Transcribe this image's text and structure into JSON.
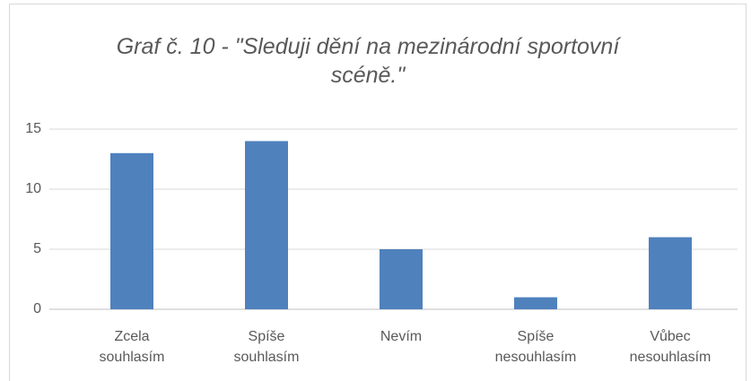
{
  "chart_data": {
    "type": "bar",
    "title": "Graf č. 10 - \"Sleduji dění na mezinárodní sportovní scéně.\"",
    "categories": [
      "Zcela souhlasím",
      "Spíše souhlasím",
      "Nevím",
      "Spíše nesouhlasím",
      "Vůbec nesouhlasím"
    ],
    "values": [
      13,
      14,
      5,
      1,
      6
    ],
    "color": "#4f81bd",
    "ylim": [
      0,
      15
    ],
    "yticks": [
      0,
      5,
      10,
      15
    ],
    "grid": true
  }
}
